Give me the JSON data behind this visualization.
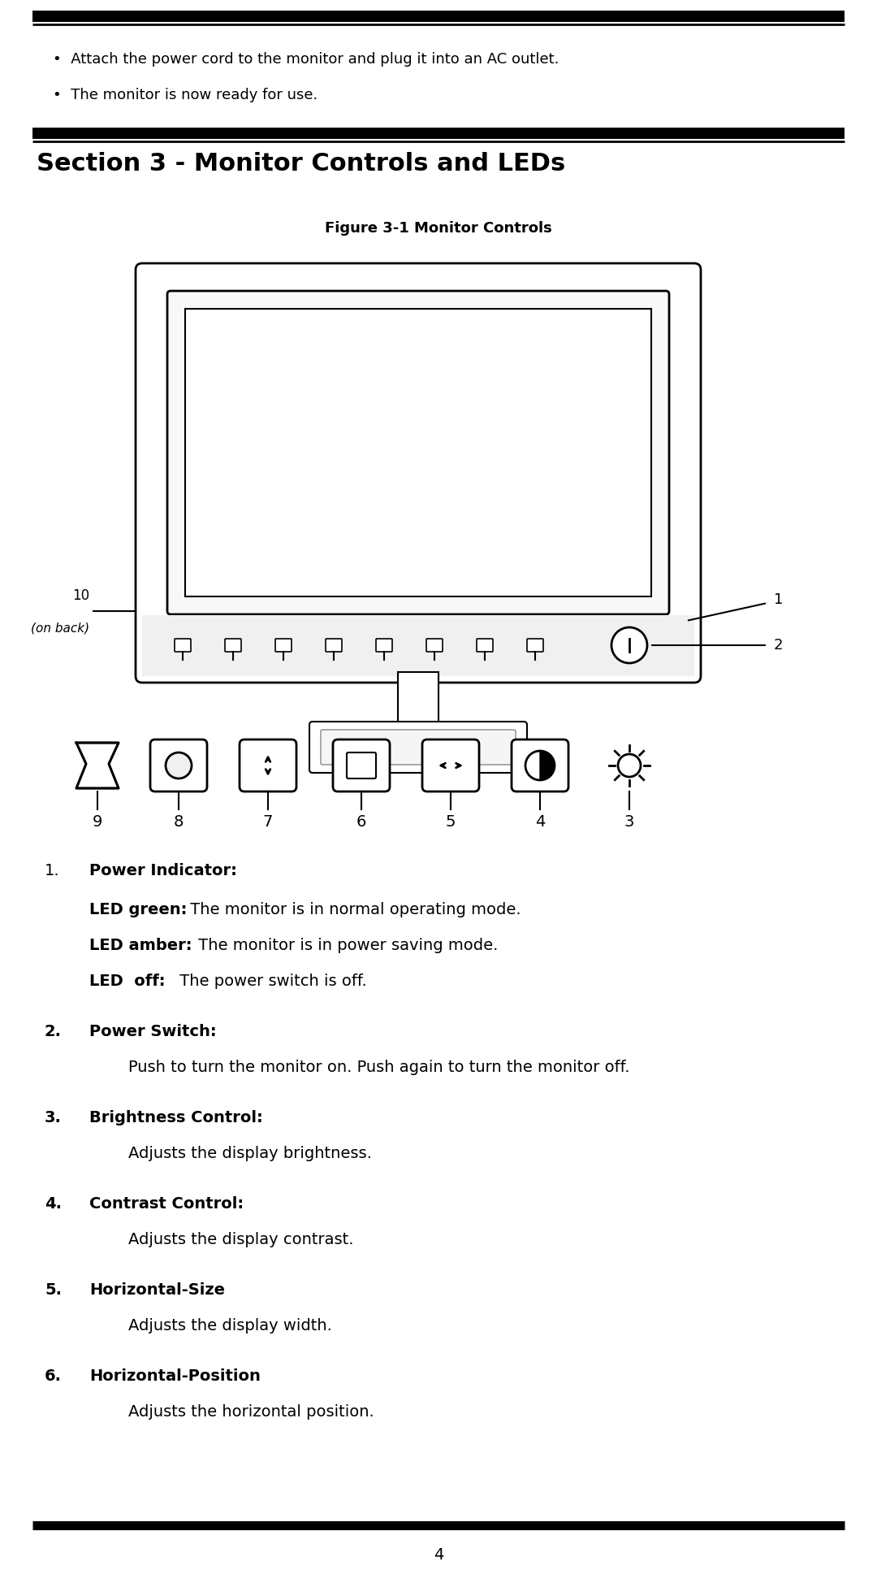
{
  "bg_color": "#ffffff",
  "top_bar_color": "#000000",
  "bullet_lines": [
    "Attach the power cord to the monitor and plug it into an AC outlet.",
    "The monitor is now ready for use."
  ],
  "section_title": "Section 3 - Monitor Controls and LEDs",
  "figure_caption": "Figure 3-1 Monitor Controls",
  "items": [
    {
      "num": "1.",
      "bold": "Power Indicator:",
      "normal": ""
    },
    {
      "num": "",
      "bold": "LED green:",
      "normal": " The monitor is in normal operating mode."
    },
    {
      "num": "",
      "bold": "LED amber:",
      "normal": " The monitor is in power saving mode."
    },
    {
      "num": "",
      "bold": "LED  off:",
      "normal": " The power switch is off."
    },
    {
      "num": "2.",
      "bold": "Power Switch:",
      "normal": ""
    },
    {
      "num": "",
      "bold": "",
      "normal": "Push to turn the monitor on. Push again to turn the monitor off."
    },
    {
      "num": "3.",
      "bold": "Brightness Control:",
      "normal": ""
    },
    {
      "num": "",
      "bold": "",
      "normal": "Adjusts the display brightness."
    },
    {
      "num": "4.",
      "bold": "Contrast Control:",
      "normal": ""
    },
    {
      "num": "",
      "bold": "",
      "normal": "Adjusts the display contrast."
    },
    {
      "num": "5.",
      "bold": "Horizontal-Size",
      "normal": ""
    },
    {
      "num": "",
      "bold": "",
      "normal": "Adjusts the display width."
    },
    {
      "num": "6.",
      "bold": "Horizontal-Position",
      "normal": ""
    },
    {
      "num": "",
      "bold": "",
      "normal": "Adjusts the horizontal position."
    }
  ],
  "page_number": "4"
}
